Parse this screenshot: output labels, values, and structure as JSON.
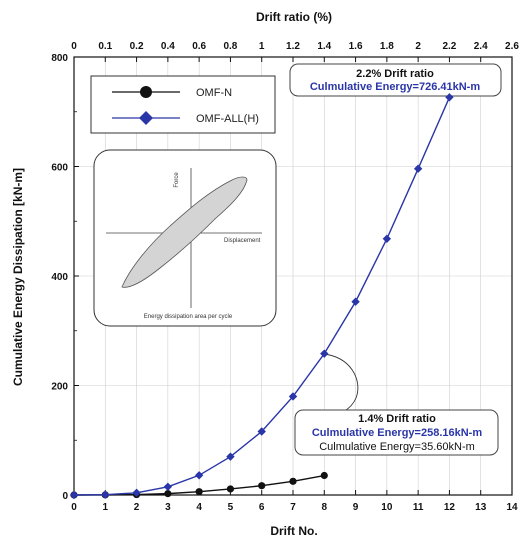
{
  "chart_data": {
    "type": "line",
    "xlabel": "Drift No.",
    "x2label": "Drift ratio (%)",
    "ylabel": "Cumulative Energy Dissipation [kN-m]",
    "xlim": [
      0,
      14
    ],
    "ylim": [
      0,
      800
    ],
    "x_ticks": [
      "0",
      "1",
      "2",
      "3",
      "4",
      "5",
      "6",
      "7",
      "8",
      "9",
      "10",
      "11",
      "12",
      "13",
      "14"
    ],
    "x2_ticks": [
      "0",
      "0.1",
      "0.2",
      "0.4",
      "0.6",
      "0.8",
      "1",
      "1.2",
      "1.4",
      "1.6",
      "1.8",
      "2",
      "2.2",
      "2.4",
      "2.6"
    ],
    "y_ticks": [
      "0",
      "200",
      "400",
      "600",
      "800"
    ],
    "grid": true,
    "legend_position": "top-left",
    "series": [
      {
        "name": "OMF-N",
        "marker": "circle",
        "color": "#111111",
        "x": [
          0,
          1,
          2,
          3,
          4,
          5,
          6,
          7,
          8
        ],
        "y": [
          0,
          0.2,
          0.8,
          2.5,
          6,
          11,
          17,
          25,
          35.6
        ]
      },
      {
        "name": "OMF-ALL(H)",
        "marker": "diamond",
        "color": "#2a36a8",
        "x": [
          0,
          1,
          2,
          3,
          4,
          5,
          6,
          7,
          8,
          9,
          10,
          11,
          12
        ],
        "y": [
          0,
          0.5,
          4,
          15,
          36,
          70,
          116,
          180,
          258.16,
          353,
          468,
          596,
          726.41
        ]
      }
    ],
    "annotations": {
      "top": {
        "line1": "2.2% Drift ratio",
        "line2": "Culmulative Energy=726.41kN-m"
      },
      "bottom": {
        "line1": "1.4% Drift ratio",
        "line2": "Culmulative Energy=258.16kN-m",
        "line3": "Culmulative Energy=35.60kN-m"
      }
    },
    "inset": {
      "y_label": "Force",
      "x_label": "Displacement",
      "caption": "Energy dissipation area per cycle"
    }
  }
}
